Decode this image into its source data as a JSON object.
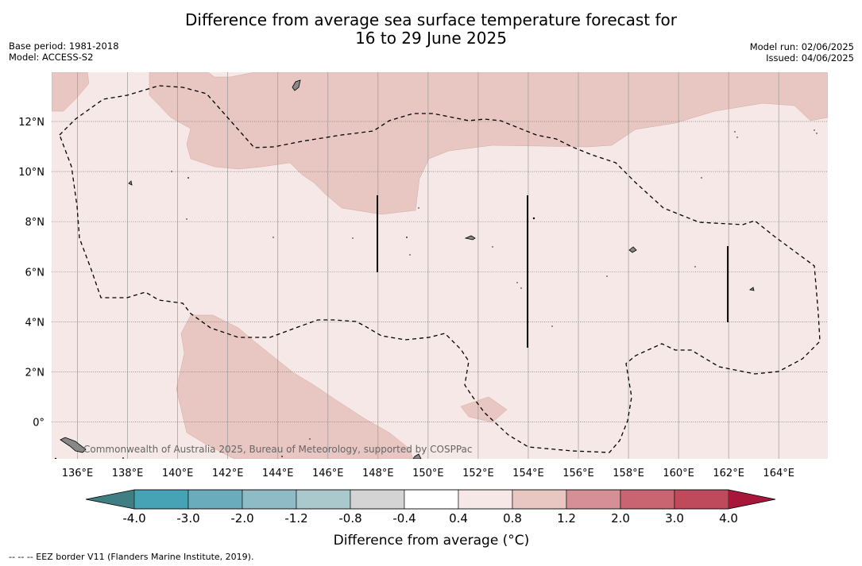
{
  "title_line1": "Difference from average sea surface temperature forecast for",
  "title_line2": "16 to 29 June 2025",
  "meta_left": [
    "Base period: 1981-2018",
    "Model: ACCESS-S2"
  ],
  "meta_right": [
    "Model run: 02/06/2025",
    "Issued: 04/06/2025"
  ],
  "attribution": "Commonwealth of Australia 2025, Bureau of Meteorology, supported by COSPPac",
  "lat_ticks": [
    "12°N",
    "10°N",
    "8°N",
    "6°N",
    "4°N",
    "2°N",
    "0°"
  ],
  "lon_ticks": [
    "136°E",
    "138°E",
    "140°E",
    "142°E",
    "144°E",
    "146°E",
    "148°E",
    "150°E",
    "152°E",
    "154°E",
    "156°E",
    "158°E",
    "160°E",
    "162°E",
    "164°E"
  ],
  "colorbar": {
    "title": "Difference from average (°C)",
    "labels": [
      "-4.0",
      "-3.0",
      "-2.0",
      "-1.2",
      "-0.8",
      "-0.4",
      "0.4",
      "0.8",
      "1.2",
      "2.0",
      "3.0",
      "4.0"
    ],
    "under_color": "#3f7f84",
    "over_color": "#a8163a",
    "colors": [
      "#46a2b5",
      "#6aacbc",
      "#8ebbc5",
      "#a9c9cc",
      "#d4d4d4",
      "#ffffff",
      "#f5e8e6",
      "#e8c6c1",
      "#d68f96",
      "#c86570",
      "#bf4a5b"
    ]
  },
  "field_colors": {
    "background": "#f5e8e6",
    "warm": "#e8c6c1",
    "land": "#888888"
  },
  "footnote": "--  --  -- EEZ border V11 (Flanders Marine Institute, 2019)."
}
